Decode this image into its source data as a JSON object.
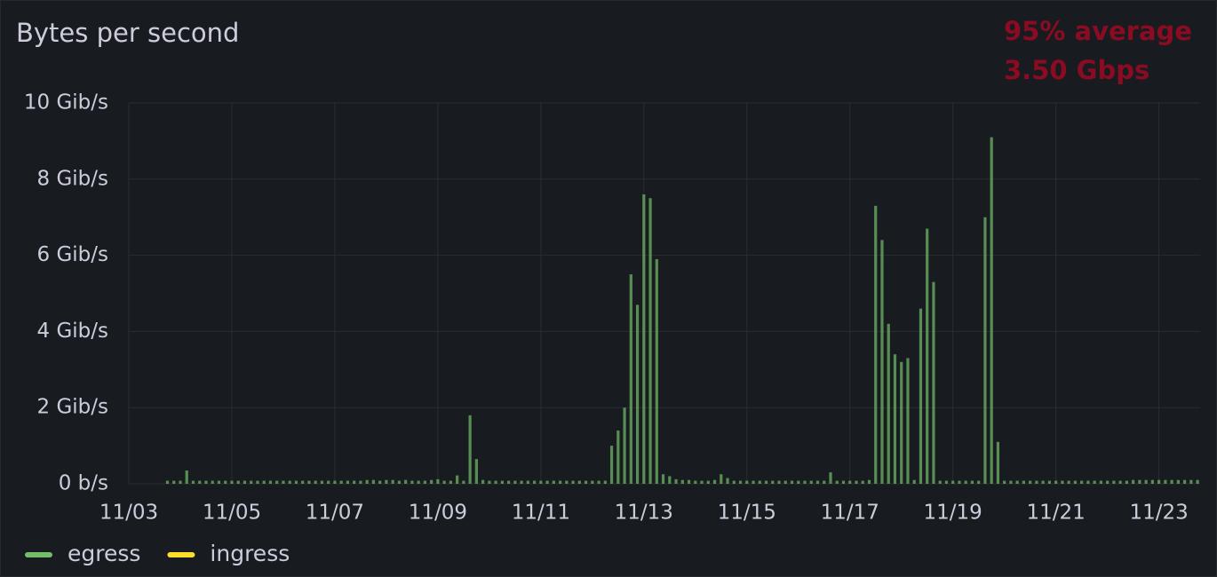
{
  "chart_data": {
    "type": "bar",
    "title": "Bytes per second",
    "annotations": [
      "95% average",
      "3.50 Gbps"
    ],
    "xlim": [
      0,
      20.8
    ],
    "xticks": [
      {
        "value": 0,
        "label": "11/03"
      },
      {
        "value": 2,
        "label": "11/05"
      },
      {
        "value": 4,
        "label": "11/07"
      },
      {
        "value": 6,
        "label": "11/09"
      },
      {
        "value": 8,
        "label": "11/11"
      },
      {
        "value": 10,
        "label": "11/13"
      },
      {
        "value": 12,
        "label": "11/15"
      },
      {
        "value": 14,
        "label": "11/17"
      },
      {
        "value": 16,
        "label": "11/19"
      },
      {
        "value": 18,
        "label": "11/21"
      },
      {
        "value": 20,
        "label": "11/23"
      }
    ],
    "ylim": [
      0,
      10
    ],
    "yticks": [
      {
        "value": 0,
        "label": "0 b/s"
      },
      {
        "value": 2,
        "label": "2 Gib/s"
      },
      {
        "value": 4,
        "label": "4 Gib/s"
      },
      {
        "value": 6,
        "label": "6 Gib/s"
      },
      {
        "value": 8,
        "label": "8 Gib/s"
      },
      {
        "value": 10,
        "label": "10 Gib/s"
      }
    ],
    "grid": true,
    "legend": "bottom-left",
    "x": [
      0.75,
      0.875,
      1,
      1.125,
      1.25,
      1.375,
      1.5,
      1.625,
      1.75,
      1.875,
      2,
      2.125,
      2.25,
      2.375,
      2.5,
      2.625,
      2.75,
      2.875,
      3,
      3.125,
      3.25,
      3.375,
      3.5,
      3.625,
      3.75,
      3.875,
      4,
      4.125,
      4.25,
      4.375,
      4.5,
      4.625,
      4.75,
      4.875,
      5,
      5.125,
      5.25,
      5.375,
      5.5,
      5.625,
      5.75,
      5.875,
      6,
      6.125,
      6.25,
      6.375,
      6.5,
      6.625,
      6.75,
      6.875,
      7,
      7.125,
      7.25,
      7.375,
      7.5,
      7.625,
      7.75,
      7.875,
      8,
      8.125,
      8.25,
      8.375,
      8.5,
      8.625,
      8.75,
      8.875,
      9,
      9.125,
      9.25,
      9.375,
      9.5,
      9.625,
      9.75,
      9.875,
      10,
      10.125,
      10.25,
      10.375,
      10.5,
      10.625,
      10.75,
      10.875,
      11,
      11.125,
      11.25,
      11.375,
      11.5,
      11.625,
      11.75,
      11.875,
      12,
      12.125,
      12.25,
      12.375,
      12.5,
      12.625,
      12.75,
      12.875,
      13,
      13.125,
      13.25,
      13.375,
      13.5,
      13.625,
      13.75,
      13.875,
      14,
      14.125,
      14.25,
      14.375,
      14.5,
      14.625,
      14.75,
      14.875,
      15,
      15.125,
      15.25,
      15.375,
      15.5,
      15.625,
      15.75,
      15.875,
      16,
      16.125,
      16.25,
      16.375,
      16.5,
      16.625,
      16.75,
      16.875,
      17,
      17.125,
      17.25,
      17.375,
      17.5,
      17.625,
      17.75,
      17.875,
      18,
      18.125,
      18.25,
      18.375,
      18.5,
      18.625,
      18.75,
      18.875,
      19,
      19.125,
      19.25,
      19.375,
      19.5,
      19.625,
      19.75,
      19.875,
      20,
      20.125,
      20.25,
      20.375,
      20.5,
      20.625,
      20.75
    ],
    "series": [
      {
        "name": "egress",
        "color": "#73bf69",
        "values": [
          0.08,
          0.08,
          0.08,
          0.35,
          0.08,
          0.08,
          0.08,
          0.08,
          0.08,
          0.08,
          0.08,
          0.08,
          0.08,
          0.08,
          0.08,
          0.08,
          0.08,
          0.08,
          0.08,
          0.08,
          0.08,
          0.08,
          0.08,
          0.08,
          0.08,
          0.08,
          0.08,
          0.08,
          0.08,
          0.08,
          0.08,
          0.1,
          0.1,
          0.08,
          0.1,
          0.1,
          0.08,
          0.1,
          0.08,
          0.08,
          0.08,
          0.1,
          0.12,
          0.08,
          0.08,
          0.22,
          0.08,
          1.8,
          0.65,
          0.1,
          0.08,
          0.08,
          0.08,
          0.08,
          0.08,
          0.08,
          0.08,
          0.08,
          0.08,
          0.08,
          0.08,
          0.08,
          0.08,
          0.08,
          0.08,
          0.08,
          0.08,
          0.08,
          0.08,
          1.0,
          1.4,
          2.0,
          5.5,
          4.7,
          7.6,
          7.5,
          5.9,
          0.25,
          0.2,
          0.12,
          0.1,
          0.1,
          0.08,
          0.08,
          0.08,
          0.1,
          0.25,
          0.15,
          0.08,
          0.08,
          0.08,
          0.08,
          0.08,
          0.08,
          0.08,
          0.08,
          0.08,
          0.08,
          0.08,
          0.08,
          0.08,
          0.08,
          0.08,
          0.3,
          0.08,
          0.08,
          0.08,
          0.08,
          0.08,
          0.1,
          7.3,
          6.4,
          4.2,
          3.4,
          3.2,
          3.3,
          0.1,
          4.6,
          6.7,
          5.3,
          0.08,
          0.08,
          0.08,
          0.08,
          0.08,
          0.08,
          0.08,
          7.0,
          9.1,
          1.1,
          0.08,
          0.08,
          0.08,
          0.08,
          0.08,
          0.08,
          0.08,
          0.08,
          0.08,
          0.08,
          0.08,
          0.08,
          0.08,
          0.08,
          0.08,
          0.08,
          0.08,
          0.08,
          0.08,
          0.08,
          0.1,
          0.1,
          0.1,
          0.1,
          0.1,
          0.1,
          0.1,
          0.1,
          0.1,
          0.1,
          0.1
        ]
      },
      {
        "name": "ingress",
        "color": "#fade2a",
        "values": [
          0,
          0,
          0,
          0,
          0,
          0,
          0,
          0,
          0,
          0,
          0,
          0,
          0,
          0,
          0,
          0,
          0,
          0,
          0,
          0,
          0,
          0,
          0,
          0,
          0,
          0,
          0,
          0,
          0,
          0,
          0,
          0,
          0,
          0,
          0,
          0,
          0,
          0,
          0,
          0,
          0,
          0,
          0,
          0,
          0,
          0,
          0,
          0,
          0,
          0,
          0,
          0,
          0,
          0,
          0,
          0,
          0,
          0,
          0,
          0,
          0,
          0,
          0,
          0,
          0,
          0,
          0,
          0,
          0,
          0,
          0,
          0,
          0,
          0,
          0,
          0,
          0,
          0,
          0,
          0,
          0,
          0,
          0,
          0,
          0,
          0,
          0,
          0,
          0,
          0,
          0,
          0,
          0,
          0,
          0,
          0,
          0,
          0,
          0,
          0,
          0,
          0,
          0,
          0,
          0,
          0,
          0,
          0,
          0,
          0,
          0,
          0,
          0,
          0,
          0,
          0,
          0,
          0,
          0,
          0,
          0,
          0,
          0,
          0,
          0,
          0,
          0,
          0,
          0,
          0,
          0,
          0,
          0,
          0,
          0,
          0,
          0,
          0,
          0,
          0,
          0,
          0,
          0,
          0,
          0,
          0,
          0,
          0,
          0,
          0,
          0,
          0,
          0,
          0,
          0,
          0,
          0,
          0,
          0,
          0,
          0
        ]
      }
    ]
  }
}
